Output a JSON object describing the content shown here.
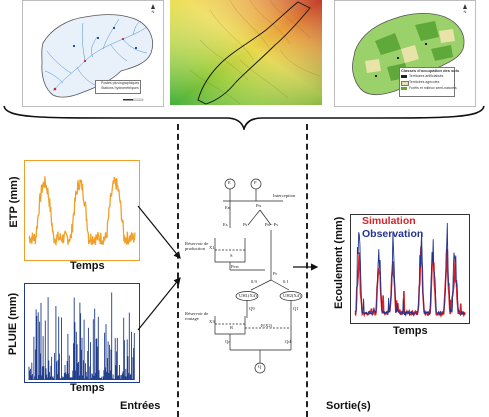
{
  "colors": {
    "etp": "#f0a02a",
    "pluie": "#1f3c8a",
    "simulation": "#d6232a",
    "observation": "#22358f",
    "model_box": "#222222"
  },
  "maps": {
    "hydro_legend": [
      "Postes pluviographiques",
      "Stations hydrométriques"
    ],
    "landuse_title": "Classes d'occupation des sols",
    "landuse_legend": [
      "Territoires artificialisés",
      "Territoires agricoles",
      "Forêts et milieux semi-naturels"
    ]
  },
  "inputs": {
    "etp": {
      "ylabel": "ETP (mm)",
      "xlabel": "Temps"
    },
    "pluie": {
      "ylabel": "PLUIE (mm)",
      "xlabel": "Temps"
    },
    "section_label": "Entrées"
  },
  "model": {
    "node_e": "E",
    "node_p": "P",
    "interception_label": "Interception",
    "en_label": "En",
    "pn_label": "Pn",
    "ps_label": "Ps",
    "es_label": "Es",
    "pn_ps_label": "Pn - Ps",
    "perc_label": "Perc",
    "s_label": "S",
    "x1_label": "X1",
    "production_label": "Réservoir de production",
    "routing_label": "Réservoir de routage",
    "uh1_label": "UH1(X4)",
    "uh2_label": "UH2(X4)",
    "split_09": "0.9",
    "split_01": "0.1",
    "pr_label": "Pr",
    "q9_label": "Q9",
    "q1_label": "Q1",
    "x3_label": "X3",
    "r_label": "R",
    "f_label": "F(X2)",
    "qr_label": "Qr",
    "qd_label": "Qd",
    "q_label": "Q"
  },
  "outputs": {
    "ylabel": "Ecoulement (mm)",
    "xlabel": "Temps",
    "simulation_label": "Simulation",
    "observation_label": "Observation",
    "section_label": "Sortie(s)"
  }
}
